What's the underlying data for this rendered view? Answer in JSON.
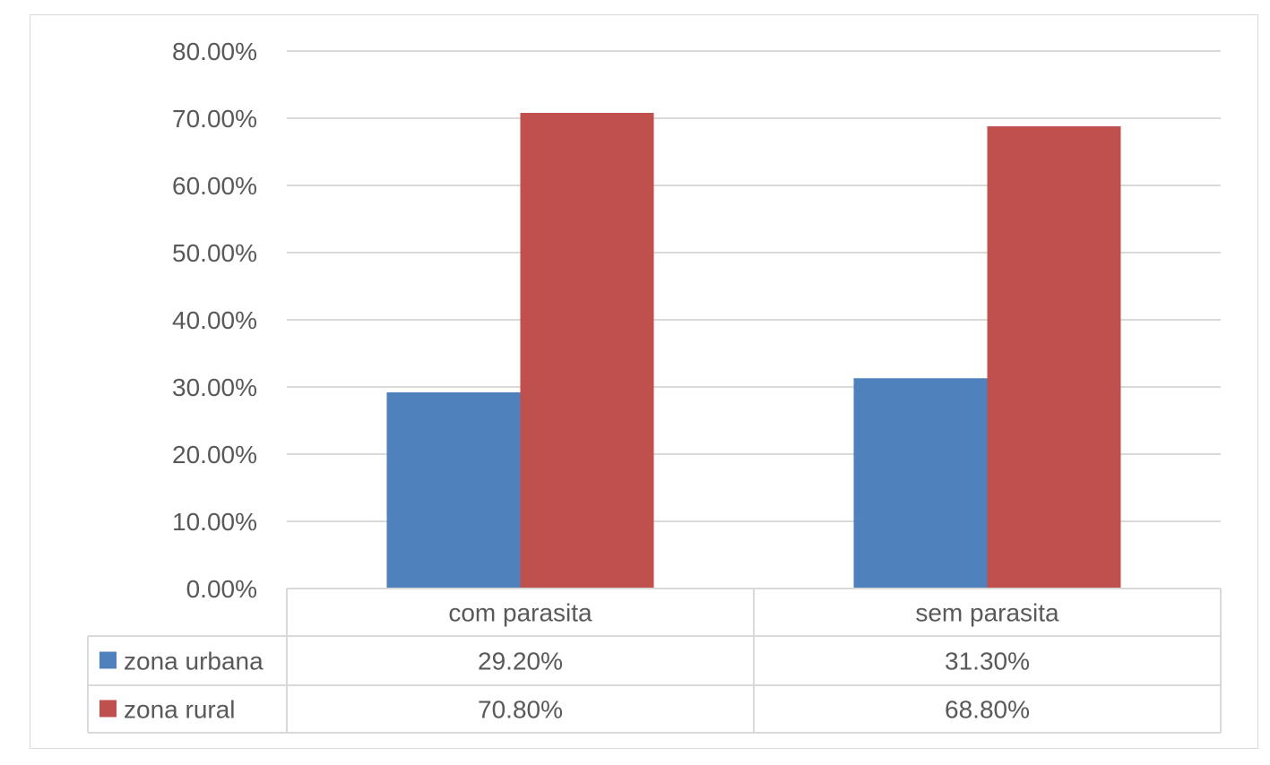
{
  "chart_data": {
    "type": "bar",
    "categories": [
      "com parasita",
      "sem parasita"
    ],
    "series": [
      {
        "name": "zona urbana",
        "values": [
          29.2,
          31.3
        ],
        "labels": [
          "29.20%",
          "31.30%"
        ],
        "color": "#4f81bd"
      },
      {
        "name": "zona rural",
        "values": [
          70.8,
          68.8
        ],
        "labels": [
          "70.80%",
          "68.80%"
        ],
        "color": "#c0504d"
      }
    ],
    "ylim": [
      0,
      80
    ],
    "yticks": [
      0,
      10,
      20,
      30,
      40,
      50,
      60,
      70,
      80
    ],
    "ytick_labels": [
      "0.00%",
      "10.00%",
      "20.00%",
      "30.00%",
      "40.00%",
      "50.00%",
      "60.00%",
      "70.00%",
      "80.00%"
    ],
    "grid": true,
    "legend": "data-table",
    "colors": {
      "grid": "#d9d9d9",
      "text": "#595959"
    }
  }
}
